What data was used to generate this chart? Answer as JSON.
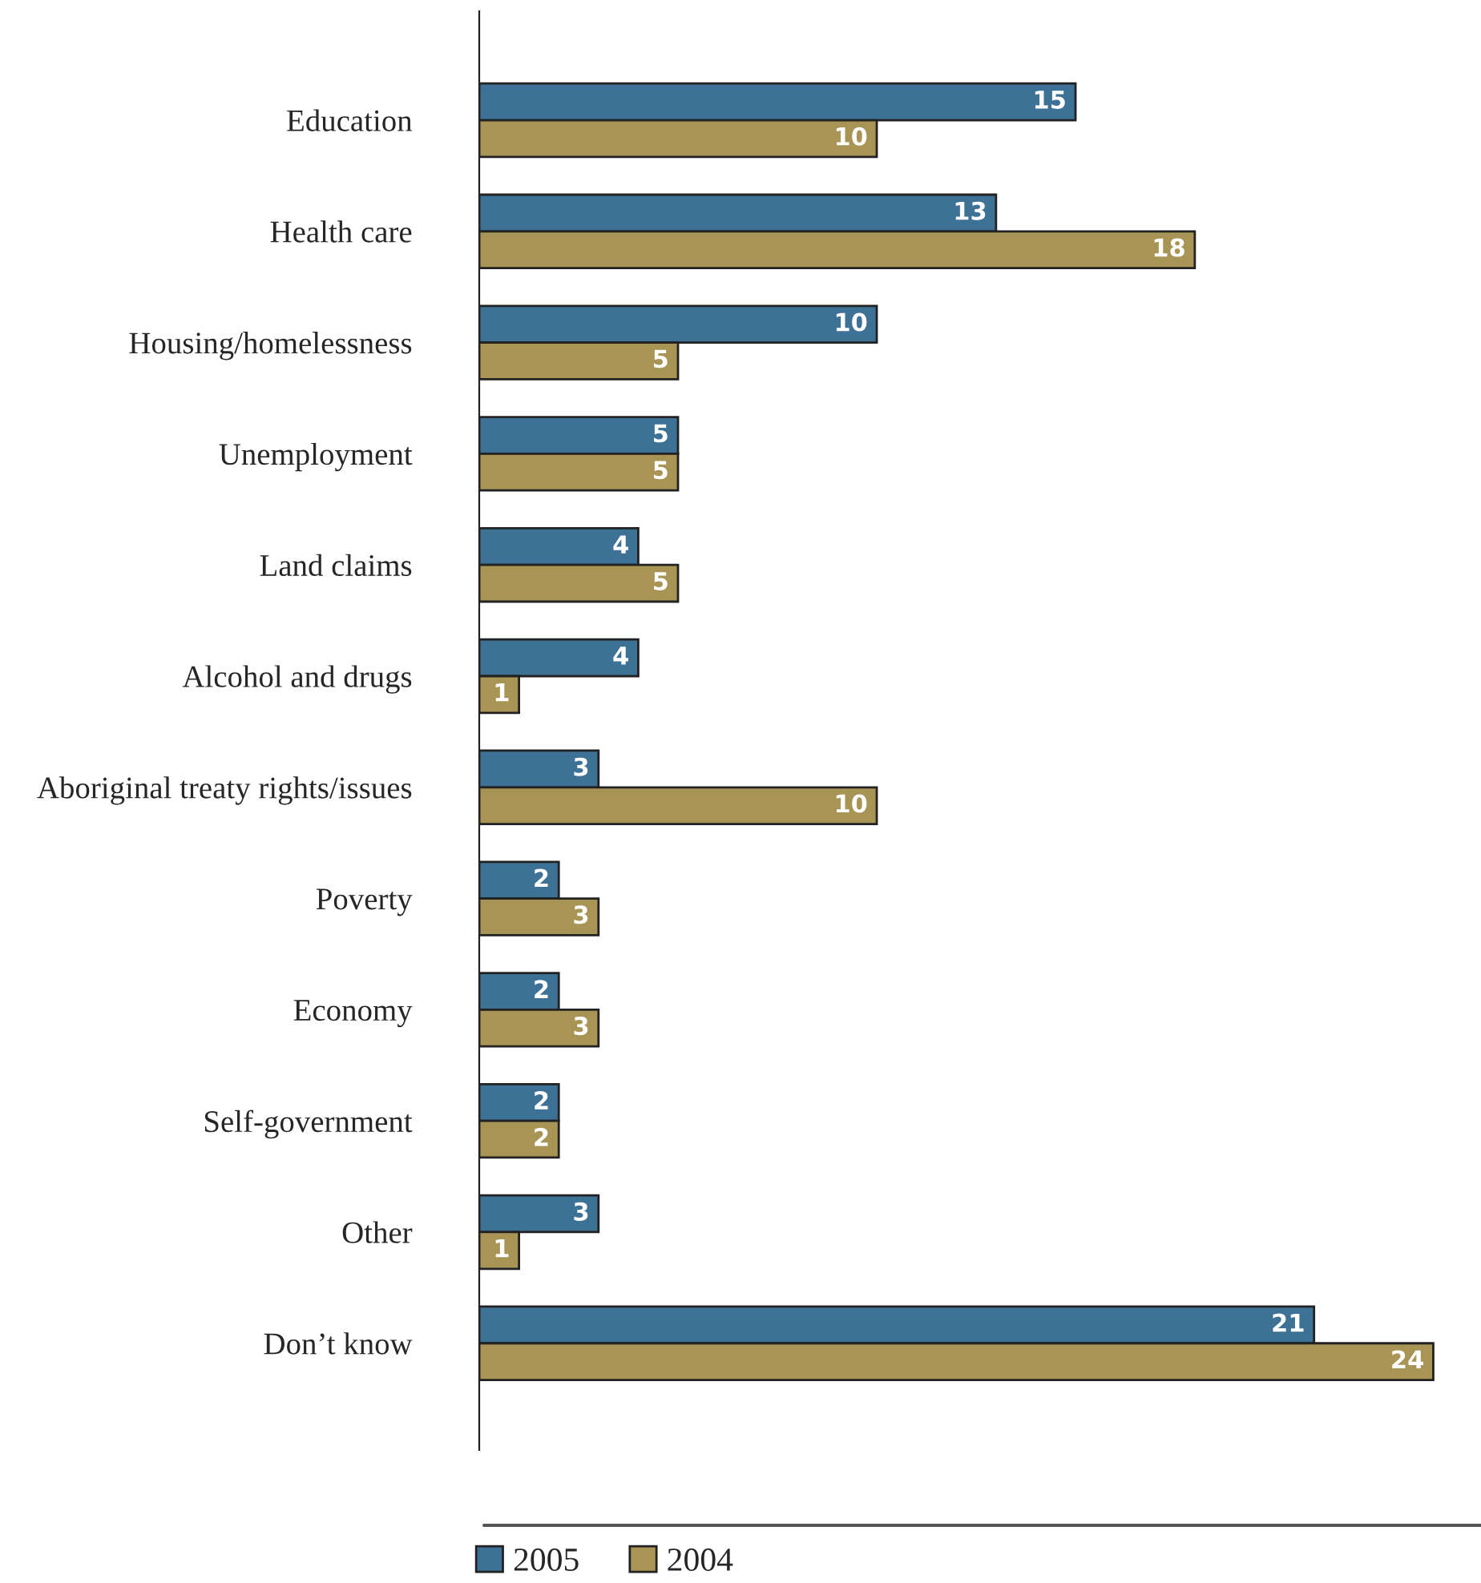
{
  "chart_data": {
    "type": "bar",
    "orientation": "horizontal",
    "categories": [
      "Education",
      "Health care",
      "Housing/homelessness",
      "Unemployment",
      "Land claims",
      "Alcohol and drugs",
      "Aboriginal treaty rights/issues",
      "Poverty",
      "Economy",
      "Self-government",
      "Other",
      "Don’t know"
    ],
    "series": [
      {
        "name": "2005",
        "color": "#3e7196",
        "values": [
          15,
          13,
          10,
          5,
          4,
          4,
          3,
          2,
          2,
          2,
          3,
          21
        ]
      },
      {
        "name": "2004",
        "color": "#a89454",
        "values": [
          10,
          18,
          5,
          5,
          5,
          1,
          10,
          3,
          3,
          2,
          1,
          24
        ]
      }
    ],
    "data_labels": true,
    "tick_labels": "y",
    "grid": false,
    "legend": "bottom"
  }
}
